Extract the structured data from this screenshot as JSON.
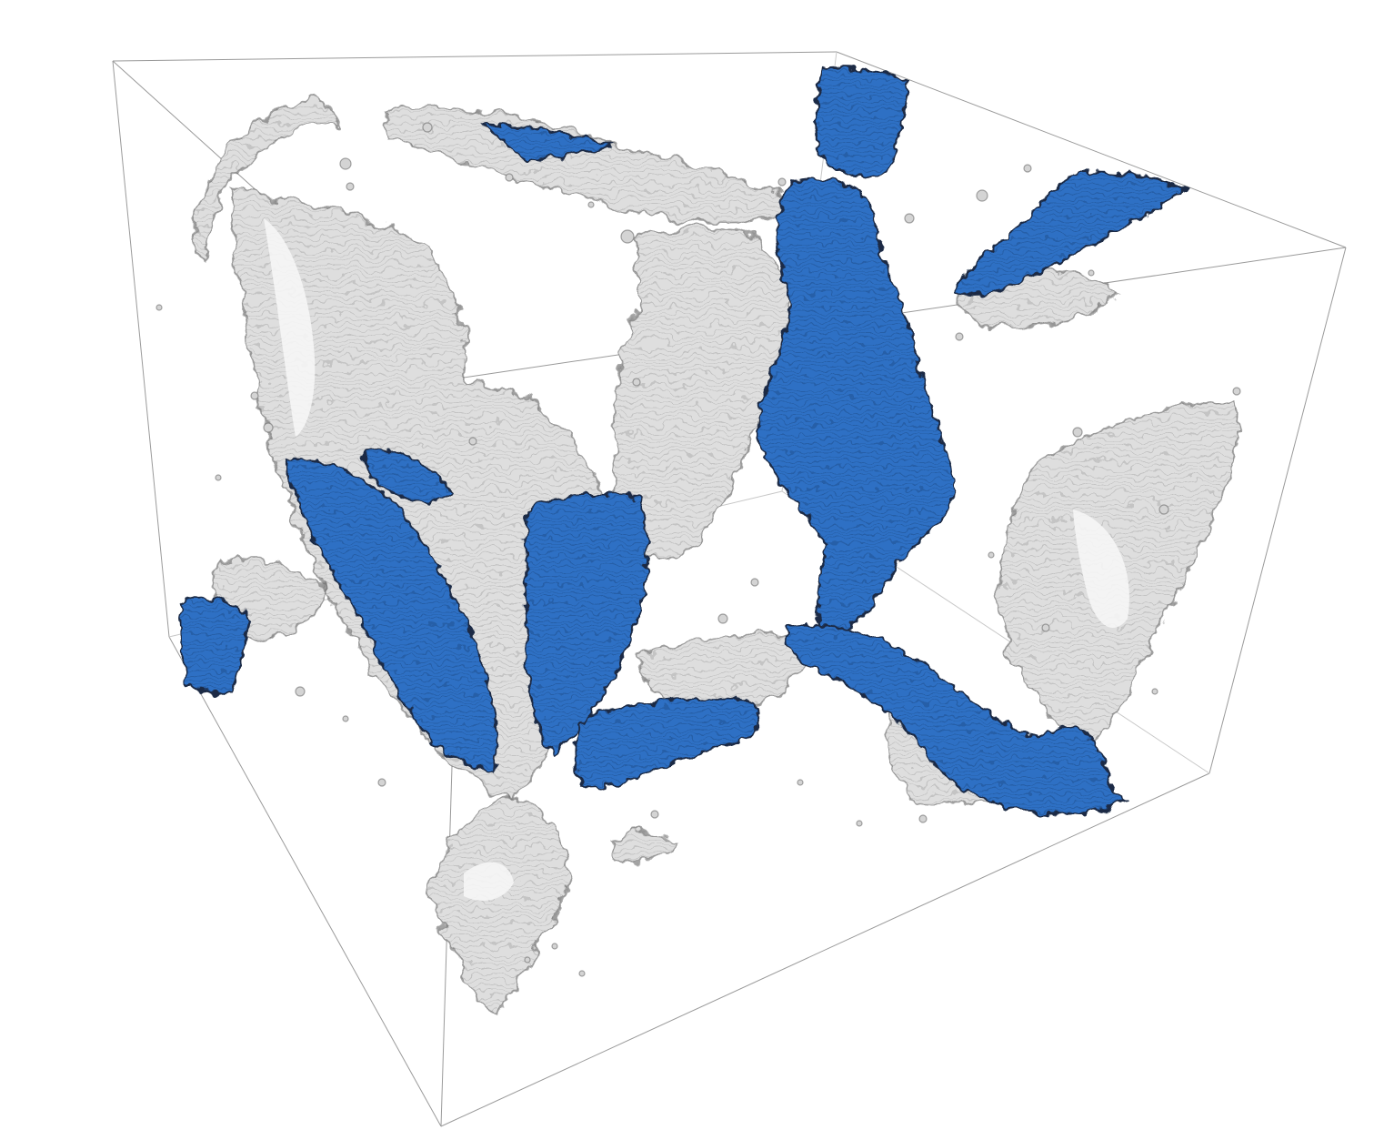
{
  "scene": {
    "background_color": "#ffffff",
    "box_edge_color": "#9a9a9a",
    "gray_structure_color": "#d9d9d9",
    "gray_shadow_color": "#5a5a5a",
    "highlighted_region_color": "#2f6fc4",
    "highlighted_edge_color": "#1a2a44",
    "visible_text": []
  }
}
